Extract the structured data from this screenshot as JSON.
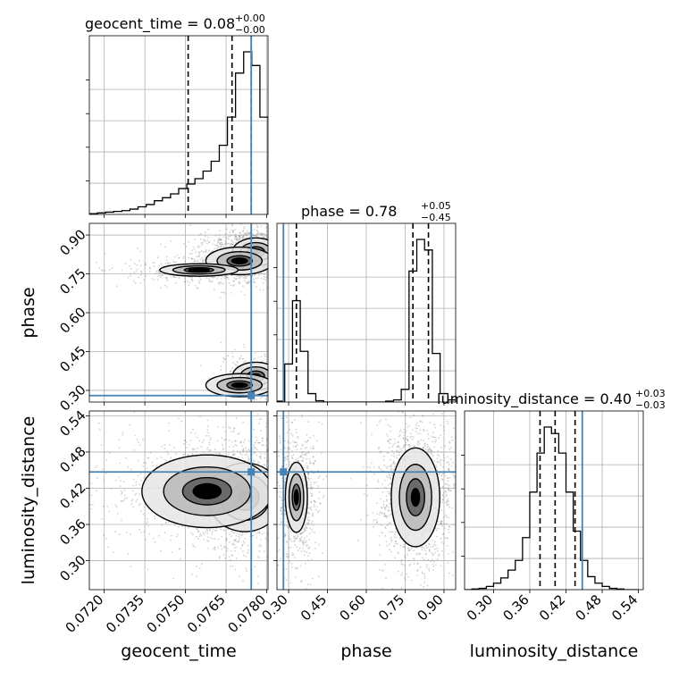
{
  "chart_data": {
    "type": "corner",
    "parameters": [
      "geocent_time",
      "phase",
      "luminosity_distance"
    ],
    "axis_labels": {
      "geocent_time": "geocent_time",
      "phase": "phase",
      "luminosity_distance": "luminosity_distance"
    },
    "ranges": {
      "geocent_time": [
        0.07145,
        0.07805
      ],
      "phase": [
        0.255,
        0.945
      ],
      "luminosity_distance": [
        0.252,
        0.548
      ]
    },
    "ticks": {
      "geocent_time": [
        "0.0720",
        "0.0735",
        "0.0750",
        "0.0765",
        "0.0780"
      ],
      "phase": [
        "0.30",
        "0.45",
        "0.60",
        "0.75",
        "0.90"
      ],
      "luminosity_distance": [
        "0.30",
        "0.36",
        "0.42",
        "0.48",
        "0.54"
      ]
    },
    "injection": {
      "geocent_time": 0.07743,
      "phase": 0.28,
      "luminosity_distance": 0.447
    },
    "titles": {
      "geocent_time": {
        "main": "geocent_time = 0.08",
        "sup": "+0.00",
        "sub": "−0.00"
      },
      "phase": {
        "main": "phase = 0.78",
        "sup": "+0.05",
        "sub": "−0.45"
      },
      "luminosity_distance": {
        "main": "luminosity_distance = 0.40",
        "sup": "+0.03",
        "sub": "−0.03"
      }
    },
    "quantiles": {
      "geocent_time": [
        0.0751,
        0.07672,
        0.07743
      ],
      "phase": [
        0.33,
        0.78,
        0.84
      ],
      "luminosity_distance": [
        0.377,
        0.402,
        0.435
      ]
    },
    "histograms": {
      "geocent_time": {
        "edges": [
          0.07145,
          0.07175,
          0.07205,
          0.07235,
          0.07265,
          0.07295,
          0.07325,
          0.07355,
          0.07385,
          0.07415,
          0.07445,
          0.07475,
          0.07505,
          0.07535,
          0.07565,
          0.07595,
          0.07625,
          0.07655,
          0.07685,
          0.07715,
          0.07745,
          0.07775,
          0.07805
        ],
        "counts": [
          1,
          2,
          3,
          4,
          5,
          7,
          10,
          13,
          18,
          22,
          27,
          34,
          40,
          47,
          57,
          70,
          91,
          128,
          186,
          214,
          196,
          128
        ]
      },
      "phase": {
        "edges": [
          0.255,
          0.285,
          0.315,
          0.345,
          0.375,
          0.405,
          0.435,
          0.465,
          0.495,
          0.525,
          0.555,
          0.585,
          0.615,
          0.645,
          0.675,
          0.705,
          0.735,
          0.765,
          0.795,
          0.825,
          0.855,
          0.885,
          0.915,
          0.945
        ],
        "counts": [
          2,
          90,
          240,
          120,
          20,
          3,
          0,
          0,
          0,
          0,
          0,
          0,
          0,
          0,
          2,
          5,
          30,
          310,
          385,
          360,
          115,
          20,
          5
        ]
      },
      "luminosity_distance": {
        "edges": [
          0.252,
          0.264,
          0.276,
          0.288,
          0.3,
          0.312,
          0.324,
          0.336,
          0.348,
          0.36,
          0.372,
          0.384,
          0.396,
          0.408,
          0.42,
          0.432,
          0.444,
          0.456,
          0.468,
          0.48,
          0.492,
          0.504,
          0.516,
          0.528,
          0.54
        ],
        "counts": [
          0,
          1,
          2,
          5,
          10,
          18,
          30,
          45,
          80,
          150,
          210,
          250,
          240,
          210,
          150,
          90,
          45,
          20,
          10,
          5,
          2,
          1,
          0,
          0
        ]
      }
    },
    "clusters_2d": {
      "phase_vs_geocent_time": [
        {
          "x": 0.0776,
          "y": 0.835,
          "sx": 0.0004,
          "sy": 0.025,
          "w": 0.5
        },
        {
          "x": 0.077,
          "y": 0.8,
          "sx": 0.0007,
          "sy": 0.03,
          "w": 0.25
        },
        {
          "x": 0.0755,
          "y": 0.765,
          "sx": 0.0009,
          "sy": 0.015,
          "w": 0.15
        },
        {
          "x": 0.0776,
          "y": 0.355,
          "sx": 0.0004,
          "sy": 0.025,
          "w": 0.5
        },
        {
          "x": 0.077,
          "y": 0.32,
          "sx": 0.0007,
          "sy": 0.025,
          "w": 0.25
        }
      ],
      "luminosity_distance_vs_geocent_time": [
        {
          "x": 0.0772,
          "y": 0.405,
          "sx": 0.0006,
          "sy": 0.025,
          "w": 0.6
        },
        {
          "x": 0.0758,
          "y": 0.415,
          "sx": 0.0012,
          "sy": 0.03,
          "w": 0.4
        }
      ],
      "luminosity_distance_vs_phase": [
        {
          "x": 0.33,
          "y": 0.405,
          "sx": 0.022,
          "sy": 0.03,
          "w": 0.35
        },
        {
          "x": 0.79,
          "y": 0.405,
          "sx": 0.04,
          "sy": 0.035,
          "w": 0.65
        }
      ]
    },
    "colors": {
      "line": "#000000",
      "injection": "#4682b4",
      "grid": "#b0b0b0",
      "scatter": "#7f7f7f"
    },
    "grid": true
  }
}
